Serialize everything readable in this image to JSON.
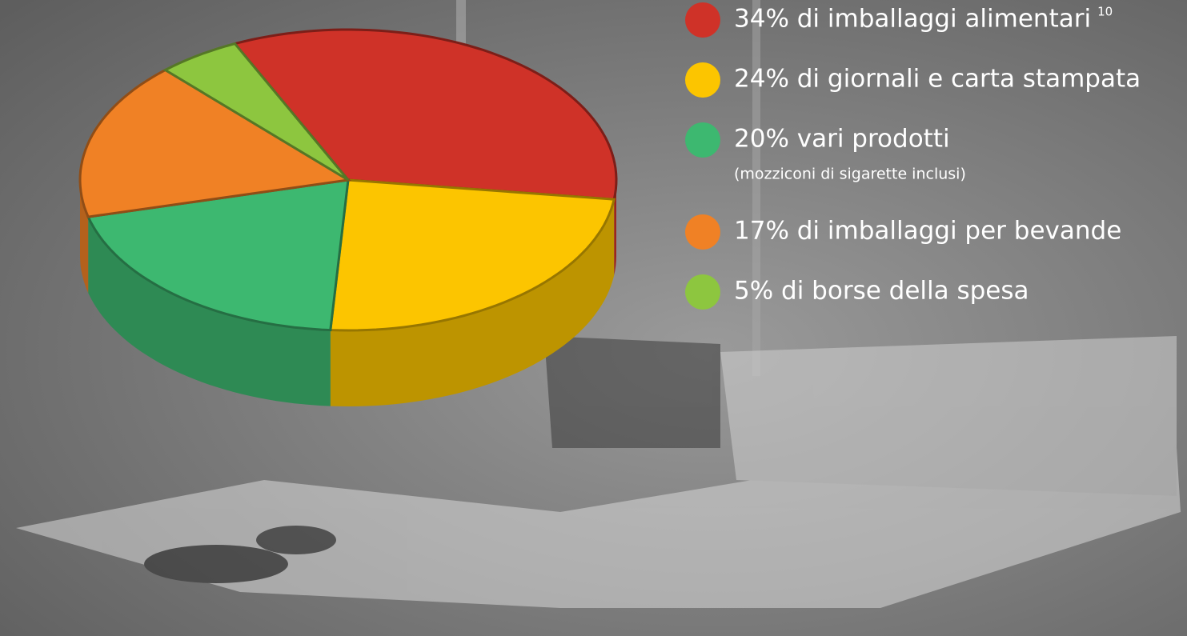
{
  "chart_data": {
    "type": "pie3d",
    "categories": [
      "34% di imballaggi alimentari",
      "24% di giornali e carta stampata",
      "20% vari prodotti",
      "17% di imballaggi per bevande",
      "5% di borse della spesa"
    ],
    "footnote_marks": [
      "10",
      null,
      null,
      null,
      null
    ],
    "sublabels": [
      null,
      null,
      "(mozziconi di sigarette inclusi)",
      null,
      null
    ],
    "values": [
      34,
      24,
      20,
      17,
      5
    ],
    "colors": [
      "#cf3228",
      "#fcc500",
      "#3db870",
      "#f08125",
      "#8dc63f"
    ]
  }
}
